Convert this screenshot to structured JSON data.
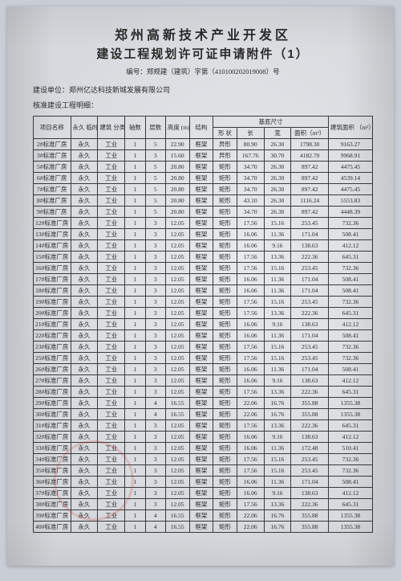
{
  "title1": "郑州高新技术产业开发区",
  "title2": "建设工程规划许可证申请附件（1）",
  "docref": "编号：郑规建（建筑）字第（410100202019008）号",
  "unit_label": "建设单位：",
  "unit_value": "郑州亿达科技新城发展有限公司",
  "detail_label": "核准建设工程明细：",
  "th": {
    "name": "项目名称",
    "perm": "永久 临时",
    "cat": "建筑 分类",
    "axis": "轴数",
    "floor": "层数",
    "height": "高度 (m)",
    "struct": "结构",
    "base": "基底尺寸",
    "shape": "形 状",
    "len": "长",
    "wid": "宽",
    "area": "面积（m²）",
    "barea": "建筑面积 （m²）"
  },
  "rows": [
    [
      "2#标准厂房",
      "永久",
      "工业",
      "1",
      "5",
      "22.90",
      "框架",
      "异形",
      "80.90",
      "26.30",
      "1798.30",
      "9163.27"
    ],
    [
      "3#标准厂房",
      "永久",
      "工业",
      "1",
      "3",
      "15.60",
      "框架",
      "异形",
      "167.76",
      "30.70",
      "4182.70",
      "9968.91"
    ],
    [
      "5#标准厂房",
      "永久",
      "工业",
      "1",
      "5",
      "20.80",
      "框架",
      "矩形",
      "34.70",
      "26.30",
      "897.42",
      "4475.45"
    ],
    [
      "6#标准厂房",
      "永久",
      "工业",
      "1",
      "5",
      "20.80",
      "框架",
      "矩形",
      "34.70",
      "26.30",
      "897.42",
      "4539.14"
    ],
    [
      "7#标准厂房",
      "永久",
      "工业",
      "1",
      "5",
      "20.80",
      "框架",
      "矩形",
      "34.70",
      "26.30",
      "897.42",
      "4475.45"
    ],
    [
      "8#标准厂房",
      "永久",
      "工业",
      "1",
      "5",
      "20.80",
      "框架",
      "矩形",
      "43.10",
      "26.30",
      "1116.24",
      "5553.83"
    ],
    [
      "9#标准厂房",
      "永久",
      "工业",
      "1",
      "5",
      "20.80",
      "框架",
      "矩形",
      "34.70",
      "26.30",
      "897.42",
      "4448.39"
    ],
    [
      "12#标准厂房",
      "永久",
      "工业",
      "1",
      "3",
      "12.05",
      "框架",
      "矩形",
      "17.56",
      "15.16",
      "253.45",
      "732.36"
    ],
    [
      "13#标准厂房",
      "永久",
      "工业",
      "1",
      "3",
      "12.05",
      "框架",
      "矩形",
      "16.06",
      "11.36",
      "171.04",
      "508.41"
    ],
    [
      "14#标准厂房",
      "永久",
      "工业",
      "1",
      "3",
      "12.05",
      "框架",
      "矩形",
      "16.06",
      "9.16",
      "138.63",
      "412.12"
    ],
    [
      "15#标准厂房",
      "永久",
      "工业",
      "1",
      "3",
      "12.05",
      "框架",
      "矩形",
      "17.56",
      "13.36",
      "222.36",
      "645.31"
    ],
    [
      "16#标准厂房",
      "永久",
      "工业",
      "1",
      "3",
      "12.05",
      "框架",
      "矩形",
      "17.56",
      "15.16",
      "253.45",
      "732.36"
    ],
    [
      "17#标准厂房",
      "永久",
      "工业",
      "1",
      "3",
      "12.05",
      "框架",
      "矩形",
      "16.06",
      "11.36",
      "171.04",
      "508.41"
    ],
    [
      "18#标准厂房",
      "永久",
      "工业",
      "1",
      "3",
      "12.05",
      "框架",
      "矩形",
      "16.06",
      "11.36",
      "171.04",
      "508.41"
    ],
    [
      "19#标准厂房",
      "永久",
      "工业",
      "1",
      "3",
      "12.05",
      "框架",
      "矩形",
      "17.56",
      "15.16",
      "253.45",
      "732.36"
    ],
    [
      "20#标准厂房",
      "永久",
      "工业",
      "1",
      "3",
      "12.05",
      "框架",
      "矩形",
      "17.56",
      "13.36",
      "222.36",
      "645.31"
    ],
    [
      "21#标准厂房",
      "永久",
      "工业",
      "1",
      "3",
      "12.05",
      "框架",
      "矩形",
      "16.06",
      "9.16",
      "138.63",
      "412.12"
    ],
    [
      "22#标准厂房",
      "永久",
      "工业",
      "1",
      "3",
      "12.05",
      "框架",
      "矩形",
      "16.06",
      "11.36",
      "171.04",
      "508.41"
    ],
    [
      "23#标准厂房",
      "永久",
      "工业",
      "1",
      "3",
      "12.05",
      "框架",
      "矩形",
      "17.56",
      "15.16",
      "253.45",
      "732.36"
    ],
    [
      "25#标准厂房",
      "永久",
      "工业",
      "1",
      "3",
      "12.05",
      "框架",
      "矩形",
      "17.56",
      "15.16",
      "253.45",
      "732.36"
    ],
    [
      "26#标准厂房",
      "永久",
      "工业",
      "1",
      "3",
      "12.05",
      "框架",
      "矩形",
      "16.06",
      "11.36",
      "171.04",
      "508.41"
    ],
    [
      "27#标准厂房",
      "永久",
      "工业",
      "1",
      "3",
      "12.05",
      "框架",
      "矩形",
      "16.06",
      "9.16",
      "138.63",
      "412.12"
    ],
    [
      "28#标准厂房",
      "永久",
      "工业",
      "1",
      "3",
      "12.05",
      "框架",
      "矩形",
      "17.56",
      "13.36",
      "222.36",
      "645.31"
    ],
    [
      "29#标准厂房",
      "永久",
      "工业",
      "1",
      "4",
      "16.55",
      "框架",
      "矩形",
      "22.06",
      "16.76",
      "355.88",
      "1355.38"
    ],
    [
      "30#标准厂房",
      "永久",
      "工业",
      "1",
      "4",
      "16.55",
      "框架",
      "矩形",
      "22.06",
      "16.76",
      "355.88",
      "1355.38"
    ],
    [
      "31#标准厂房",
      "永久",
      "工业",
      "1",
      "3",
      "12.05",
      "框架",
      "矩形",
      "17.56",
      "13.36",
      "222.36",
      "645.31"
    ],
    [
      "32#标准厂房",
      "永久",
      "工业",
      "1",
      "3",
      "12.05",
      "框架",
      "矩形",
      "16.06",
      "9.16",
      "138.63",
      "412.12"
    ],
    [
      "33#标准厂房",
      "永久",
      "工业",
      "1",
      "3",
      "12.05",
      "框架",
      "矩形",
      "16.06",
      "11.36",
      "172.48",
      "510.41"
    ],
    [
      "34#标准厂房",
      "永久",
      "工业",
      "1",
      "3",
      "12.05",
      "框架",
      "矩形",
      "17.56",
      "15.16",
      "253.45",
      "732.36"
    ],
    [
      "35#标准厂房",
      "永久",
      "工业",
      "1",
      "3",
      "12.05",
      "框架",
      "矩形",
      "17.56",
      "15.16",
      "253.45",
      "732.36"
    ],
    [
      "36#标准厂房",
      "永久",
      "工业",
      "1",
      "3",
      "12.05",
      "框架",
      "矩形",
      "16.06",
      "11.36",
      "171.04",
      "508.41"
    ],
    [
      "37#标准厂房",
      "永久",
      "工业",
      "1",
      "3",
      "12.05",
      "框架",
      "矩形",
      "16.06",
      "9.16",
      "138.63",
      "412.12"
    ],
    [
      "38#标准厂房",
      "永久",
      "工业",
      "1",
      "3",
      "12.05",
      "框架",
      "矩形",
      "17.56",
      "13.36",
      "222.36",
      "645.31"
    ],
    [
      "39#标准厂房",
      "永久",
      "工业",
      "1",
      "4",
      "16.55",
      "框架",
      "矩形",
      "22.06",
      "16.76",
      "355.88",
      "1355.38"
    ],
    [
      "40#标准厂房",
      "永久",
      "工业",
      "1",
      "4",
      "16.55",
      "框架",
      "矩形",
      "22.06",
      "16.76",
      "355.88",
      "1355.38"
    ]
  ]
}
